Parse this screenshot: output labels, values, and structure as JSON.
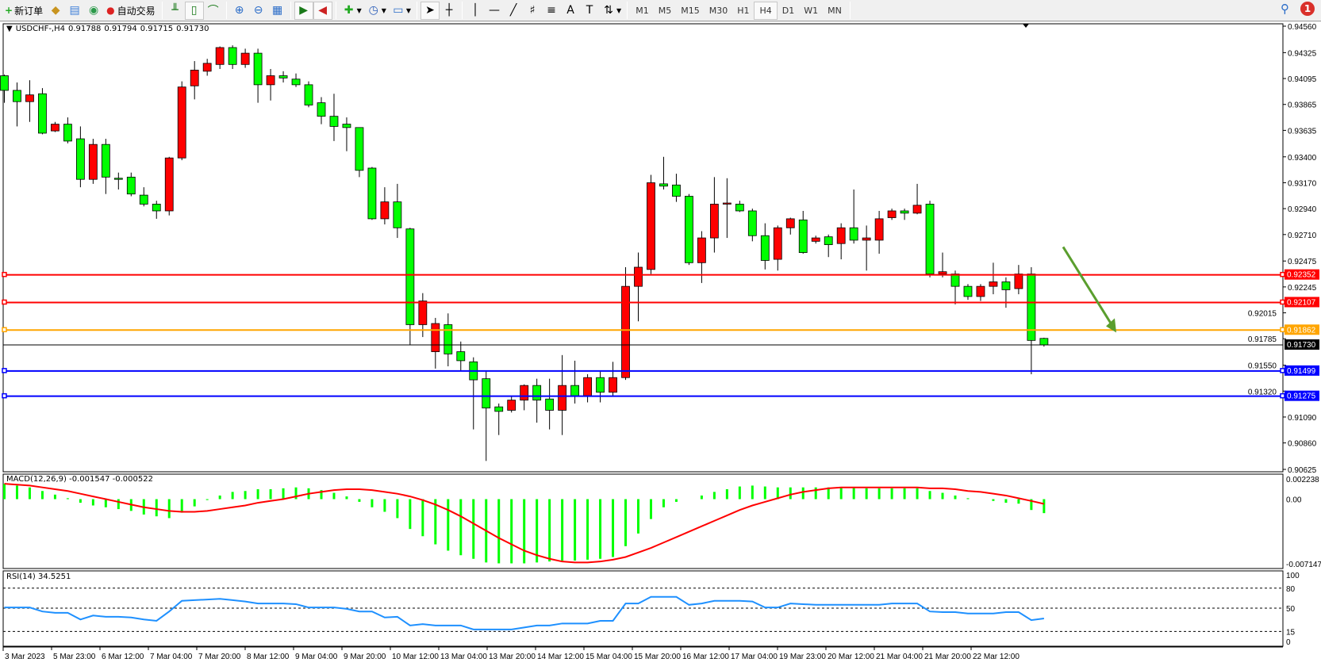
{
  "toolbar": {
    "new_order": "新订单",
    "auto_trading": "自动交易",
    "timeframes": [
      "M1",
      "M5",
      "M15",
      "M30",
      "H1",
      "H4",
      "D1",
      "W1",
      "MN"
    ],
    "active_timeframe": "H4",
    "notification_count": "1",
    "icons": [
      "market-watch-icon",
      "navigator-icon",
      "signal-icon",
      "bar-chart-icon",
      "candlestick-icon",
      "line-chart-icon",
      "zoom-in-icon",
      "zoom-out-icon",
      "tile-windows-icon",
      "auto-scroll-icon",
      "chart-shift-icon",
      "indicators-icon",
      "periods-icon",
      "templates-icon",
      "cursor-icon",
      "crosshair-icon",
      "vertical-line-icon",
      "horizontal-line-icon",
      "trendline-icon",
      "fibonacci-icon",
      "fibo-fan-icon",
      "text-icon",
      "text-label-icon",
      "arrows-icon",
      "search-icon",
      "chat-icon"
    ]
  },
  "chart_data": {
    "type": "candlestick",
    "title": "USDCHF-,H4",
    "ohlc_header": [
      "0.91788",
      "0.91794",
      "0.91715",
      "0.91730"
    ],
    "colors": {
      "bull": "#ff0000",
      "bear": "#00ff00",
      "outline": "#000000",
      "macd_hist": "#00ff00",
      "macd_signal": "#ff0000",
      "rsi": "#1e90ff"
    },
    "ylim": [
      0.90625,
      0.9456
    ],
    "price_ticks": [
      "0.94560",
      "0.94325",
      "0.94095",
      "0.93865",
      "0.93635",
      "0.93400",
      "0.93170",
      "0.92940",
      "0.92710",
      "0.92475",
      "0.92245",
      "0.92015",
      "0.91785",
      "0.91550",
      "0.91320",
      "0.91090",
      "0.90860",
      "0.90625"
    ],
    "x_labels": [
      "3 Mar 2023",
      "5 Mar 23:00",
      "6 Mar 12:00",
      "7 Mar 04:00",
      "7 Mar 20:00",
      "8 Mar 12:00",
      "9 Mar 04:00",
      "9 Mar 20:00",
      "10 Mar 12:00",
      "13 Mar 04:00",
      "13 Mar 20:00",
      "14 Mar 12:00",
      "15 Mar 04:00",
      "15 Mar 20:00",
      "16 Mar 12:00",
      "17 Mar 04:00",
      "19 Mar 23:00",
      "20 Mar 12:00",
      "21 Mar 04:00",
      "21 Mar 20:00",
      "22 Mar 12:00"
    ],
    "candles": [
      [
        0.9412,
        0.9413,
        0.9388,
        0.9399
      ],
      [
        0.9399,
        0.9406,
        0.9367,
        0.9389
      ],
      [
        0.9389,
        0.9408,
        0.9371,
        0.9395
      ],
      [
        0.9396,
        0.9401,
        0.936,
        0.9361
      ],
      [
        0.9363,
        0.9371,
        0.9362,
        0.9369
      ],
      [
        0.9369,
        0.9375,
        0.9352,
        0.9354
      ],
      [
        0.9356,
        0.9367,
        0.9313,
        0.932
      ],
      [
        0.932,
        0.9356,
        0.9316,
        0.9351
      ],
      [
        0.9351,
        0.9356,
        0.9307,
        0.9322
      ],
      [
        0.9321,
        0.9326,
        0.9311,
        0.932
      ],
      [
        0.9322,
        0.9326,
        0.9305,
        0.9307
      ],
      [
        0.9306,
        0.9313,
        0.9296,
        0.9298
      ],
      [
        0.9298,
        0.9301,
        0.9285,
        0.9292
      ],
      [
        0.9292,
        0.934,
        0.9288,
        0.9339
      ],
      [
        0.9339,
        0.9407,
        0.9337,
        0.9402
      ],
      [
        0.9403,
        0.9425,
        0.9391,
        0.9417
      ],
      [
        0.9416,
        0.9427,
        0.9412,
        0.9423
      ],
      [
        0.9422,
        0.9438,
        0.9418,
        0.9437
      ],
      [
        0.9437,
        0.9439,
        0.9418,
        0.9422
      ],
      [
        0.9422,
        0.9436,
        0.9419,
        0.9432
      ],
      [
        0.9432,
        0.9436,
        0.9388,
        0.9404
      ],
      [
        0.9404,
        0.9418,
        0.939,
        0.9412
      ],
      [
        0.9412,
        0.9416,
        0.9406,
        0.941
      ],
      [
        0.9409,
        0.9414,
        0.9402,
        0.9404
      ],
      [
        0.9404,
        0.9407,
        0.9384,
        0.9386
      ],
      [
        0.9388,
        0.9393,
        0.9369,
        0.9376
      ],
      [
        0.9376,
        0.9396,
        0.9354,
        0.9367
      ],
      [
        0.9369,
        0.9375,
        0.9345,
        0.9366
      ],
      [
        0.9366,
        0.9366,
        0.9322,
        0.9328
      ],
      [
        0.933,
        0.9331,
        0.9284,
        0.9285
      ],
      [
        0.9285,
        0.9313,
        0.928,
        0.93
      ],
      [
        0.93,
        0.9316,
        0.9268,
        0.9277
      ],
      [
        0.9276,
        0.9277,
        0.9173,
        0.9191
      ],
      [
        0.9191,
        0.9219,
        0.918,
        0.9212
      ],
      [
        0.9167,
        0.9197,
        0.9152,
        0.9192
      ],
      [
        0.9191,
        0.9201,
        0.9154,
        0.9165
      ],
      [
        0.9167,
        0.9176,
        0.915,
        0.9159
      ],
      [
        0.9158,
        0.9162,
        0.9098,
        0.9142
      ],
      [
        0.9143,
        0.915,
        0.907,
        0.9117
      ],
      [
        0.9118,
        0.9121,
        0.9093,
        0.9114
      ],
      [
        0.9115,
        0.9127,
        0.9113,
        0.9124
      ],
      [
        0.9124,
        0.9138,
        0.9115,
        0.9137
      ],
      [
        0.9137,
        0.9143,
        0.9104,
        0.9124
      ],
      [
        0.9125,
        0.9143,
        0.9098,
        0.9115
      ],
      [
        0.9115,
        0.9164,
        0.9093,
        0.9137
      ],
      [
        0.9137,
        0.9159,
        0.9121,
        0.9128
      ],
      [
        0.9128,
        0.9147,
        0.9122,
        0.9144
      ],
      [
        0.9144,
        0.915,
        0.9122,
        0.9131
      ],
      [
        0.9131,
        0.9158,
        0.9128,
        0.9144
      ],
      [
        0.9144,
        0.9242,
        0.9142,
        0.9225
      ],
      [
        0.9225,
        0.9255,
        0.9194,
        0.9242
      ],
      [
        0.924,
        0.9324,
        0.9236,
        0.9317
      ],
      [
        0.9316,
        0.934,
        0.9311,
        0.9314
      ],
      [
        0.9315,
        0.9325,
        0.93,
        0.9305
      ],
      [
        0.9305,
        0.9307,
        0.9244,
        0.9246
      ],
      [
        0.9246,
        0.9274,
        0.9228,
        0.9268
      ],
      [
        0.9268,
        0.9322,
        0.9255,
        0.9298
      ],
      [
        0.9298,
        0.9321,
        0.9268,
        0.9299
      ],
      [
        0.9298,
        0.9301,
        0.9291,
        0.9292
      ],
      [
        0.9292,
        0.9294,
        0.9265,
        0.927
      ],
      [
        0.927,
        0.9281,
        0.924,
        0.9248
      ],
      [
        0.9249,
        0.9279,
        0.9239,
        0.9277
      ],
      [
        0.9277,
        0.9286,
        0.9271,
        0.9285
      ],
      [
        0.9284,
        0.9292,
        0.9254,
        0.9255
      ],
      [
        0.9265,
        0.927,
        0.9263,
        0.9268
      ],
      [
        0.9269,
        0.9271,
        0.9251,
        0.9262
      ],
      [
        0.9263,
        0.9281,
        0.9249,
        0.9277
      ],
      [
        0.9277,
        0.9311,
        0.9263,
        0.9266
      ],
      [
        0.9266,
        0.9279,
        0.9239,
        0.9268
      ],
      [
        0.9266,
        0.9292,
        0.9254,
        0.9285
      ],
      [
        0.9286,
        0.9294,
        0.9284,
        0.9292
      ],
      [
        0.9292,
        0.9294,
        0.9284,
        0.929
      ],
      [
        0.929,
        0.9316,
        0.9289,
        0.9297
      ],
      [
        0.9298,
        0.9301,
        0.9233,
        0.9236
      ],
      [
        0.9236,
        0.9255,
        0.9233,
        0.9238
      ],
      [
        0.9236,
        0.9239,
        0.9209,
        0.9225
      ],
      [
        0.9225,
        0.9227,
        0.9213,
        0.9216
      ],
      [
        0.9216,
        0.9227,
        0.9212,
        0.9225
      ],
      [
        0.9225,
        0.9246,
        0.9218,
        0.9229
      ],
      [
        0.9229,
        0.9233,
        0.9206,
        0.9222
      ],
      [
        0.9223,
        0.9244,
        0.9218,
        0.9236
      ],
      [
        0.9236,
        0.9242,
        0.9147,
        0.9177
      ],
      [
        0.91788,
        0.91794,
        0.91715,
        0.9173
      ]
    ],
    "hlines": [
      {
        "price": 0.92352,
        "label": "0.92352",
        "color": "#ff0000"
      },
      {
        "price": 0.92107,
        "label": "0.92107",
        "color": "#ff0000"
      },
      {
        "price": 0.91862,
        "label": "0.91862",
        "color": "#ffa500"
      },
      {
        "price": 0.91499,
        "label": "0.91499",
        "color": "#0000ff"
      },
      {
        "price": 0.91275,
        "label": "0.91275",
        "color": "#0000ff"
      }
    ],
    "current_price": {
      "price": 0.9173,
      "label": "0.91730",
      "color": "#000000"
    },
    "arrow": {
      "color": "#5a9e2e",
      "from_price": 0.926,
      "to_price": 0.9184,
      "direction": "down"
    },
    "macd": {
      "label": "MACD(12,26,9) -0.001547 -0.000522",
      "ylim": [
        -0.007147,
        0.002238
      ],
      "ticks": [
        "0.002238",
        "0.00",
        "-0.007147"
      ],
      "main": [
        0.0017,
        0.0015,
        0.0013,
        0.0009,
        0.0005,
        0.0001,
        -0.0004,
        -0.0007,
        -0.0009,
        -0.0011,
        -0.0013,
        -0.0017,
        -0.0019,
        -0.0021,
        -0.0015,
        -0.0008,
        -0.0001,
        0.0004,
        0.0008,
        0.0009,
        0.0011,
        0.0011,
        0.0012,
        0.0013,
        0.0012,
        0.001,
        0.0007,
        0.0003,
        -0.0003,
        -0.0009,
        -0.0014,
        -0.0021,
        -0.0033,
        -0.0041,
        -0.005,
        -0.0057,
        -0.0062,
        -0.0066,
        -0.007,
        -0.0071,
        -0.0071,
        -0.0071,
        -0.007,
        -0.0069,
        -0.0068,
        -0.0068,
        -0.0067,
        -0.0066,
        -0.0064,
        -0.0052,
        -0.0038,
        -0.0022,
        -0.0009,
        -0.0003,
        0.0,
        0.0004,
        0.0008,
        0.0011,
        0.0014,
        0.0015,
        0.0014,
        0.0013,
        0.0013,
        0.0013,
        0.0013,
        0.0013,
        0.0013,
        0.0013,
        0.0012,
        0.0012,
        0.0012,
        0.0012,
        0.0012,
        0.0009,
        0.0007,
        0.0004,
        0.0001,
        0.0,
        -0.0002,
        -0.0004,
        -0.0005,
        -0.0012,
        -0.001547
      ],
      "signal": [
        0.0017,
        0.0016,
        0.0015,
        0.0013,
        0.0011,
        0.0009,
        0.0006,
        0.0003,
        0.0,
        -0.0003,
        -0.0006,
        -0.0009,
        -0.0011,
        -0.0013,
        -0.0014,
        -0.0014,
        -0.0013,
        -0.0011,
        -0.0009,
        -0.0007,
        -0.0004,
        -0.0002,
        0.0,
        0.0003,
        0.0006,
        0.0008,
        0.001,
        0.0011,
        0.0011,
        0.001,
        0.0008,
        0.0006,
        0.0003,
        -0.0001,
        -0.0006,
        -0.0012,
        -0.0019,
        -0.0027,
        -0.0035,
        -0.0043,
        -0.005,
        -0.0057,
        -0.0062,
        -0.0066,
        -0.0069,
        -0.007,
        -0.007,
        -0.0069,
        -0.0067,
        -0.0064,
        -0.0059,
        -0.0054,
        -0.0048,
        -0.0042,
        -0.0036,
        -0.003,
        -0.0024,
        -0.0018,
        -0.0012,
        -0.0007,
        -0.0003,
        0.0001,
        0.0005,
        0.0008,
        0.001,
        0.0012,
        0.0013,
        0.0013,
        0.0013,
        0.0013,
        0.0013,
        0.0013,
        0.0013,
        0.0012,
        0.0012,
        0.0011,
        0.0009,
        0.0008,
        0.0006,
        0.0004,
        0.0001,
        -0.0002,
        -0.000522
      ]
    },
    "rsi": {
      "label": "RSI(14) 34.5251",
      "ylim": [
        0,
        100
      ],
      "ticks": [
        "100",
        "80",
        "50",
        "15",
        "0"
      ],
      "levels": [
        80,
        50,
        15
      ],
      "values": [
        51,
        51,
        51,
        45,
        43,
        43,
        33,
        39,
        37,
        37,
        36,
        33,
        31,
        45,
        61,
        62,
        63,
        64,
        62,
        60,
        57,
        57,
        57,
        56,
        51,
        51,
        51,
        49,
        45,
        45,
        36,
        37,
        24,
        26,
        24,
        24,
        24,
        18,
        18,
        18,
        18,
        21,
        24,
        24,
        27,
        27,
        27,
        31,
        31,
        57,
        57,
        67,
        67,
        67,
        55,
        57,
        61,
        61,
        61,
        60,
        51,
        51,
        57,
        56,
        55,
        55,
        55,
        55,
        55,
        55,
        57,
        57,
        57,
        45,
        44,
        44,
        42,
        42,
        42,
        44,
        44,
        32,
        34.5251
      ]
    }
  }
}
